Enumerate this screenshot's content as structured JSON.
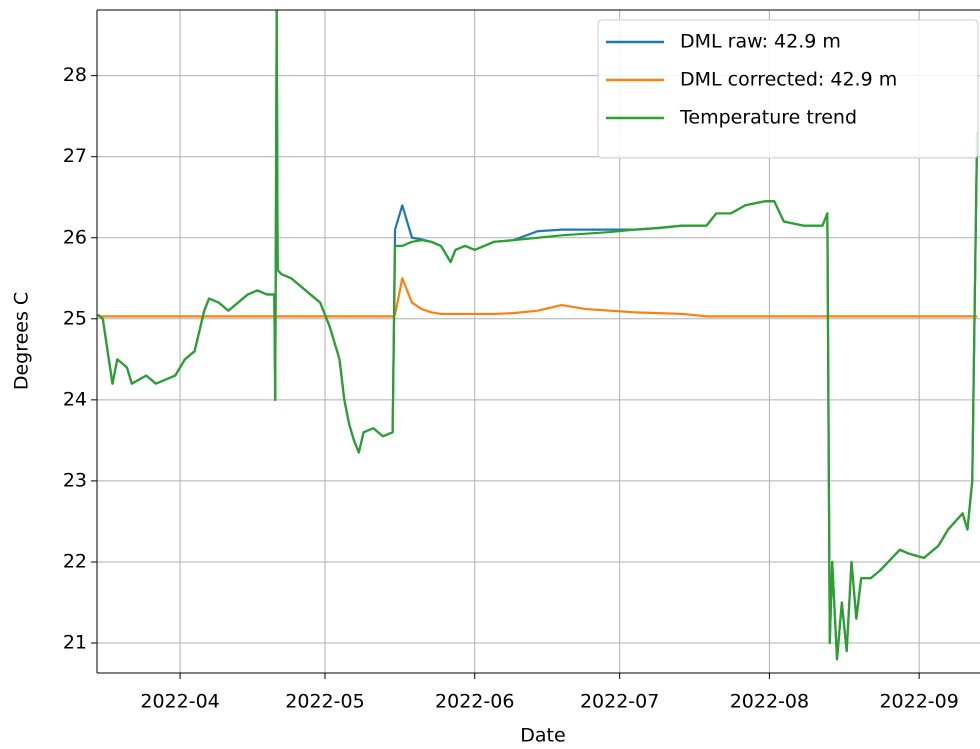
{
  "chart_data": {
    "type": "line",
    "xlabel": "Date",
    "ylabel": "Degrees C",
    "x": [
      74,
      75,
      76,
      77,
      78,
      80,
      81,
      84,
      86,
      88,
      90,
      92,
      94,
      96,
      97,
      99,
      101,
      103,
      105,
      107,
      109,
      110.5,
      110.7,
      111,
      111.2,
      112,
      114,
      116,
      118,
      120,
      122,
      124,
      125,
      126,
      127,
      128,
      129,
      131,
      133,
      135,
      135.5,
      137,
      139,
      141,
      143,
      145,
      147,
      148,
      150,
      152,
      154,
      156,
      160,
      165,
      170,
      175,
      180,
      185,
      190,
      195,
      200,
      202,
      205,
      208,
      212,
      214,
      216,
      220,
      224,
      225,
      225.5,
      226,
      227,
      228,
      229,
      230,
      231,
      232,
      234,
      236,
      240,
      242,
      245,
      248,
      250,
      253,
      254,
      255,
      256
    ],
    "series": [
      {
        "name": "DML raw: 42.9 m",
        "color": "#1f77b4",
        "values": [
          25.05,
          25.0,
          24.6,
          24.2,
          24.5,
          24.4,
          24.2,
          24.3,
          24.2,
          24.25,
          24.3,
          24.5,
          24.6,
          25.1,
          25.25,
          25.2,
          25.1,
          25.2,
          25.3,
          25.35,
          25.3,
          25.3,
          24.0,
          28.8,
          25.6,
          25.55,
          25.5,
          25.4,
          25.3,
          25.2,
          24.9,
          24.5,
          24.0,
          23.7,
          23.5,
          23.35,
          23.6,
          23.65,
          23.55,
          23.6,
          26.1,
          26.4,
          26.0,
          25.98,
          25.95,
          25.9,
          25.7,
          25.85,
          25.9,
          25.85,
          25.9,
          25.95,
          25.97,
          26.08,
          26.1,
          26.1,
          26.1,
          26.1,
          26.12,
          26.15,
          26.15,
          26.3,
          26.3,
          26.4,
          26.45,
          26.45,
          26.2,
          26.15,
          26.15,
          26.3,
          21.0,
          22.0,
          20.8,
          21.5,
          20.9,
          22.0,
          21.3,
          21.8,
          21.8,
          21.9,
          22.15,
          22.1,
          22.05,
          22.2,
          22.4,
          22.6,
          22.4,
          23.0,
          27.3
        ]
      },
      {
        "name": "DML corrected: 42.9 m",
        "color": "#ff7f0e",
        "values": [
          25.03,
          25.03,
          25.03,
          25.03,
          25.03,
          25.03,
          25.03,
          25.03,
          25.03,
          25.03,
          25.03,
          25.03,
          25.03,
          25.03,
          25.03,
          25.03,
          25.03,
          25.03,
          25.03,
          25.03,
          25.03,
          25.03,
          25.03,
          25.03,
          25.03,
          25.03,
          25.03,
          25.03,
          25.03,
          25.03,
          25.03,
          25.03,
          25.03,
          25.03,
          25.03,
          25.03,
          25.03,
          25.03,
          25.03,
          25.03,
          25.05,
          25.5,
          25.2,
          25.12,
          25.08,
          25.06,
          25.06,
          25.06,
          25.06,
          25.06,
          25.06,
          25.06,
          25.07,
          25.1,
          25.17,
          25.12,
          25.1,
          25.08,
          25.07,
          25.06,
          25.03,
          25.03,
          25.03,
          25.03,
          25.03,
          25.03,
          25.03,
          25.03,
          25.03,
          25.03,
          25.03,
          25.03,
          25.03,
          25.03,
          25.03,
          25.03,
          25.03,
          25.03,
          25.03,
          25.03,
          25.03,
          25.03,
          25.03,
          25.03,
          25.03,
          25.03,
          25.03,
          25.03,
          25.03
        ]
      },
      {
        "name": "Temperature trend",
        "color": "#2ca02c",
        "values": [
          25.05,
          25.0,
          24.6,
          24.2,
          24.5,
          24.4,
          24.2,
          24.3,
          24.2,
          24.25,
          24.3,
          24.5,
          24.6,
          25.1,
          25.25,
          25.2,
          25.1,
          25.2,
          25.3,
          25.35,
          25.3,
          25.3,
          24.0,
          28.8,
          25.6,
          25.55,
          25.5,
          25.4,
          25.3,
          25.2,
          24.9,
          24.5,
          24.0,
          23.7,
          23.5,
          23.35,
          23.6,
          23.65,
          23.55,
          23.6,
          25.9,
          25.9,
          25.95,
          25.97,
          25.95,
          25.9,
          25.7,
          25.85,
          25.9,
          25.85,
          25.9,
          25.95,
          25.97,
          26.0,
          26.03,
          26.05,
          26.07,
          26.1,
          26.12,
          26.15,
          26.15,
          26.3,
          26.3,
          26.4,
          26.45,
          26.45,
          26.2,
          26.15,
          26.15,
          26.3,
          21.0,
          22.0,
          20.8,
          21.5,
          20.9,
          22.0,
          21.3,
          21.8,
          21.8,
          21.9,
          22.15,
          22.1,
          22.05,
          22.2,
          22.4,
          22.6,
          22.4,
          23.0,
          27.3
        ]
      }
    ],
    "xlim": [
      73.8,
      256.6
    ],
    "xticks": [
      {
        "value": 91,
        "label": "2022-04"
      },
      {
        "value": 121,
        "label": "2022-05"
      },
      {
        "value": 152,
        "label": "2022-06"
      },
      {
        "value": 182,
        "label": "2022-07"
      },
      {
        "value": 213,
        "label": "2022-08"
      },
      {
        "value": 244,
        "label": "2022-09"
      }
    ],
    "ylim": [
      20.63,
      28.81
    ],
    "yticks": [
      21,
      22,
      23,
      24,
      25,
      26,
      27,
      28
    ],
    "grid": true,
    "legend": "upper right"
  }
}
